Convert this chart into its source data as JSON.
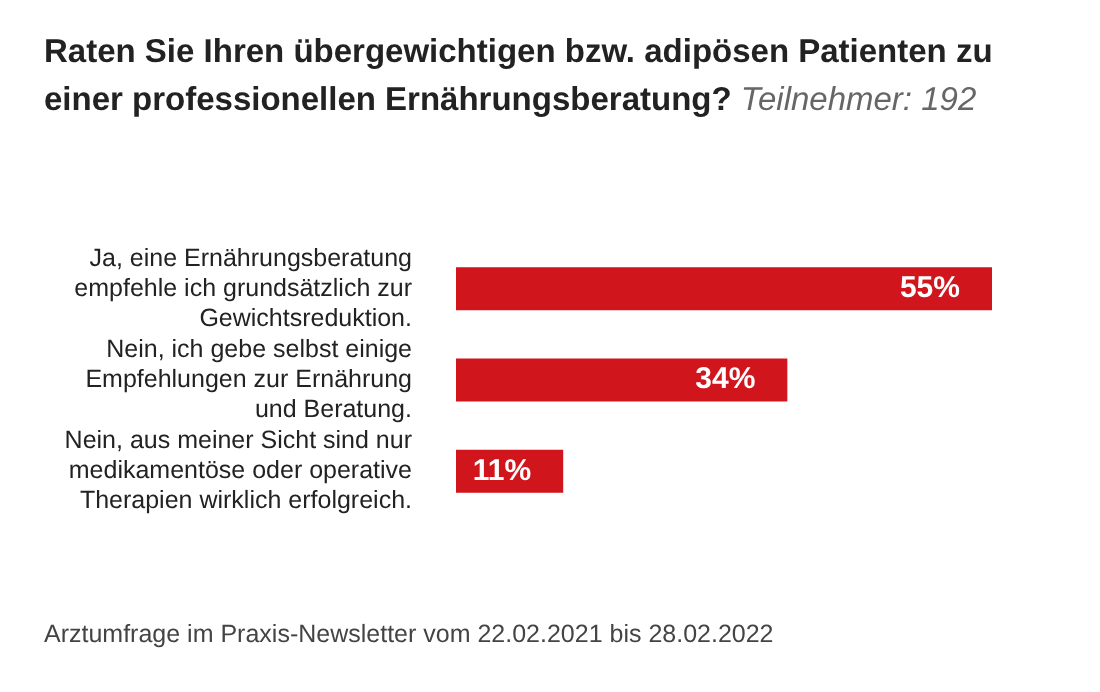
{
  "chart_data": {
    "type": "bar",
    "orientation": "horizontal",
    "title": "Raten Sie Ihren übergewichtigen bzw. adipösen Patienten zu einer professionellen Ernährungsberatung?",
    "subtitle": "Teilnehmer: 192",
    "categories": [
      "Ja, eine Ernährungsberatung empfehle ich grundsätzlich zur Gewichtsreduktion.",
      "Nein, ich gebe selbst einige Empfehlungen zur Ernährung und Beratung.",
      "Nein, aus meiner Sicht sind nur medikamentöse oder operative Therapien wirklich erfolgreich."
    ],
    "values": [
      55,
      34,
      11
    ],
    "color": "#d0151c",
    "value_labels": [
      "55%",
      "34%",
      "11%"
    ],
    "annotations": [
      "Arztumfrage im Praxis-Newsletter vom 22.02.2021 bis 28.02.2022"
    ]
  }
}
